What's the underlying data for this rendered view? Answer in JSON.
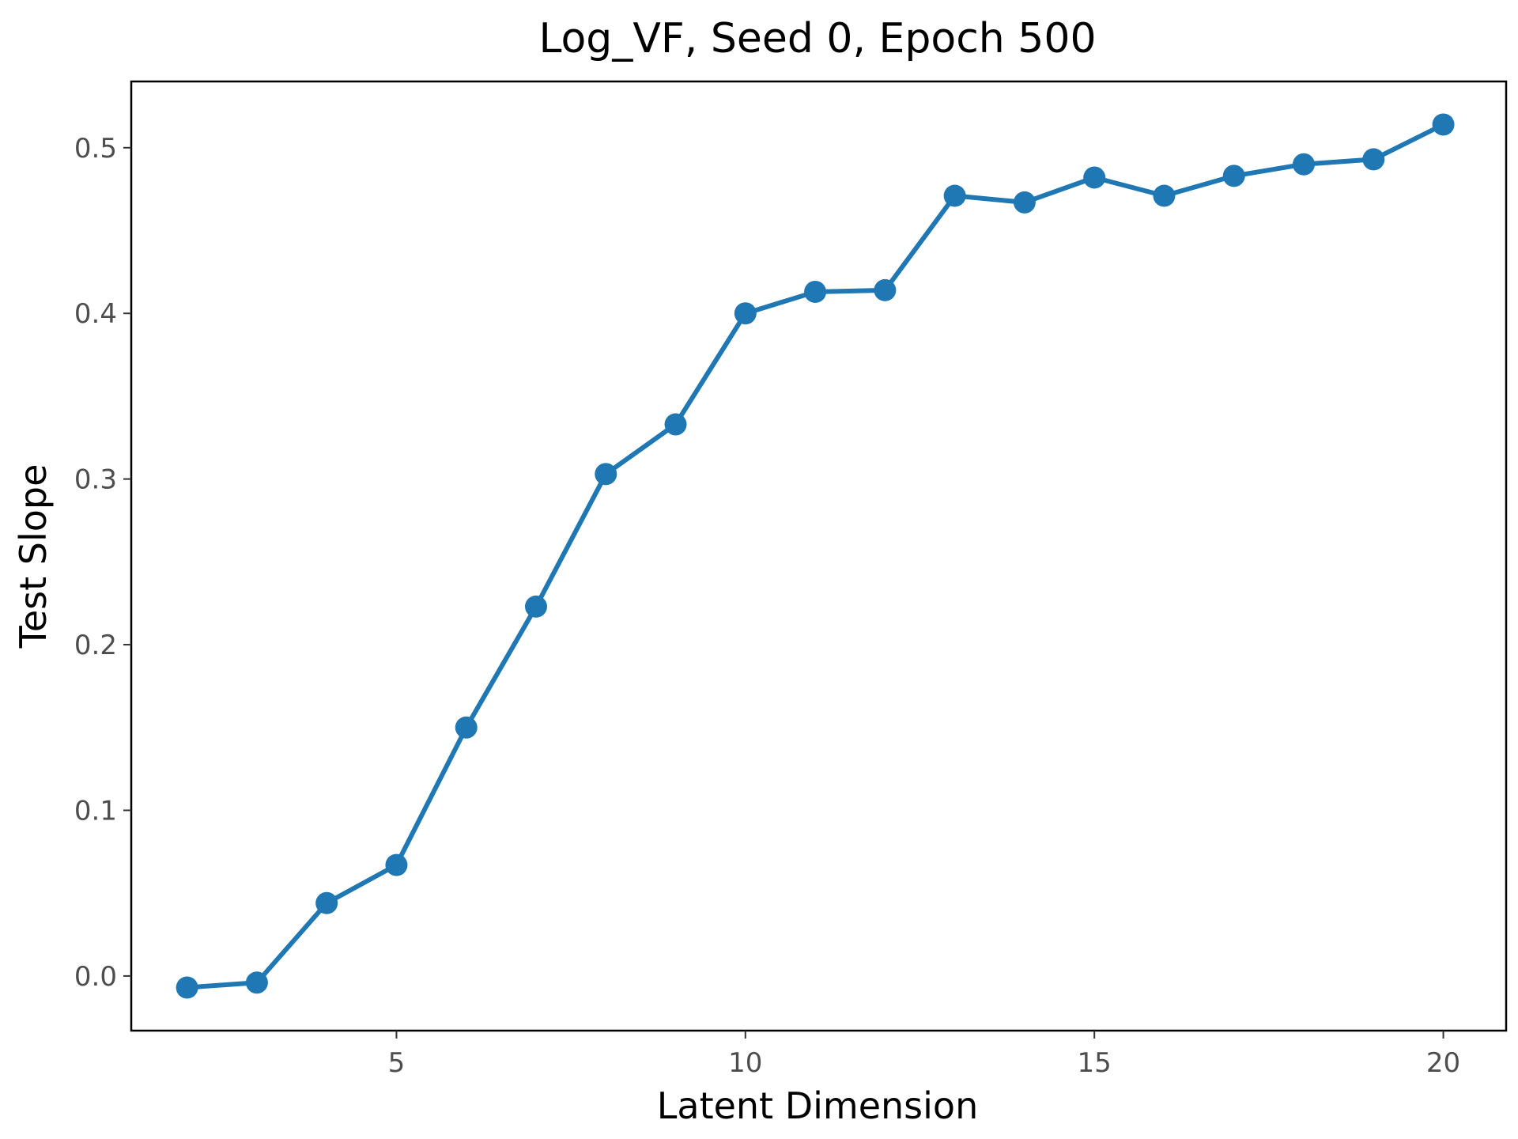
{
  "chart_data": {
    "type": "line",
    "title": "Log_VF, Seed 0, Epoch 500",
    "xlabel": "Latent Dimension",
    "ylabel": "Test Slope",
    "xlim": [
      1.2,
      20.9
    ],
    "ylim": [
      -0.033,
      0.54
    ],
    "x_ticks": [
      5,
      10,
      15,
      20
    ],
    "x_tick_labels": [
      "5",
      "10",
      "15",
      "20"
    ],
    "y_ticks": [
      0.0,
      0.1,
      0.2,
      0.3,
      0.4,
      0.5
    ],
    "y_tick_labels": [
      "0.0",
      "0.1",
      "0.2",
      "0.3",
      "0.4",
      "0.5"
    ],
    "grid": false,
    "color": "#1f77b4",
    "series": [
      {
        "x": [
          2,
          3,
          4,
          5,
          6,
          7,
          8,
          9,
          10,
          11,
          12,
          13,
          14,
          15,
          16,
          17,
          18,
          19,
          20
        ],
        "values": [
          -0.007,
          -0.004,
          0.044,
          0.067,
          0.15,
          0.223,
          0.303,
          0.333,
          0.4,
          0.413,
          0.414,
          0.471,
          0.467,
          0.482,
          0.471,
          0.483,
          0.49,
          0.493,
          0.514
        ]
      }
    ]
  }
}
